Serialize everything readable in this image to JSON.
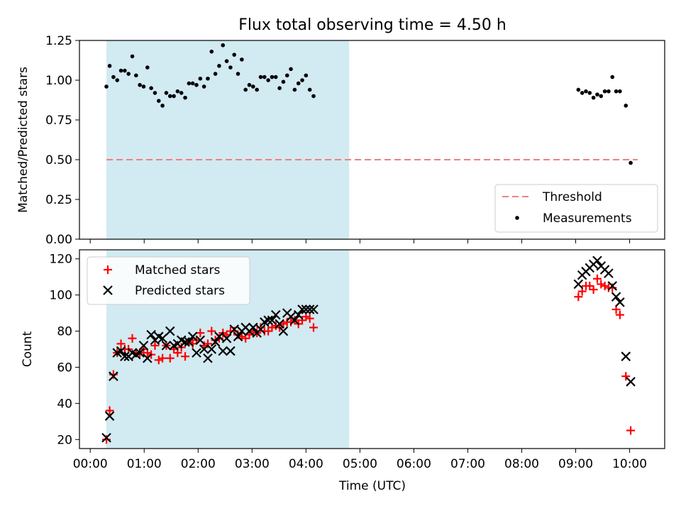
{
  "figure": {
    "title": "Flux total observing time = 4.50 h",
    "xlabel": "Time (UTC)"
  },
  "colors": {
    "shade": "#add8e6",
    "threshold": "#f08080",
    "measurement": "#000000",
    "matched": "#ff0000",
    "predicted": "#000000"
  },
  "chart_data": [
    {
      "type": "scatter",
      "ylabel": "Matched/Predicted stars",
      "ylim": [
        0.0,
        1.25
      ],
      "y_ticks": [
        0.0,
        0.25,
        0.5,
        0.75,
        1.0,
        1.25
      ],
      "y_tick_labels": [
        "0.00",
        "0.25",
        "0.50",
        "0.75",
        "1.00",
        "1.25"
      ],
      "x_unit": "hours (UTC)",
      "shaded_interval": [
        0.3,
        4.8
      ],
      "grid": false,
      "legend": {
        "position": "lower-right",
        "entries": [
          "Threshold",
          "Measurements"
        ]
      },
      "series": [
        {
          "name": "Threshold",
          "kind": "dashed-line",
          "x": [
            0.3,
            10.15
          ],
          "y": [
            0.5,
            0.5
          ]
        },
        {
          "name": "Measurements",
          "kind": "dots",
          "points": [
            [
              0.3,
              0.96
            ],
            [
              0.36,
              1.09
            ],
            [
              0.43,
              1.02
            ],
            [
              0.5,
              1.0
            ],
            [
              0.57,
              1.06
            ],
            [
              0.64,
              1.06
            ],
            [
              0.71,
              1.04
            ],
            [
              0.78,
              1.15
            ],
            [
              0.85,
              1.03
            ],
            [
              0.92,
              0.97
            ],
            [
              0.99,
              0.96
            ],
            [
              1.06,
              1.08
            ],
            [
              1.13,
              0.95
            ],
            [
              1.2,
              0.92
            ],
            [
              1.27,
              0.87
            ],
            [
              1.34,
              0.84
            ],
            [
              1.41,
              0.92
            ],
            [
              1.48,
              0.9
            ],
            [
              1.55,
              0.9
            ],
            [
              1.62,
              0.93
            ],
            [
              1.69,
              0.92
            ],
            [
              1.76,
              0.89
            ],
            [
              1.83,
              0.98
            ],
            [
              1.9,
              0.98
            ],
            [
              1.97,
              0.97
            ],
            [
              2.04,
              1.01
            ],
            [
              2.11,
              0.96
            ],
            [
              2.18,
              1.01
            ],
            [
              2.25,
              1.18
            ],
            [
              2.32,
              1.04
            ],
            [
              2.39,
              1.09
            ],
            [
              2.46,
              1.22
            ],
            [
              2.53,
              1.12
            ],
            [
              2.6,
              1.08
            ],
            [
              2.67,
              1.16
            ],
            [
              2.74,
              1.04
            ],
            [
              2.81,
              1.13
            ],
            [
              2.88,
              0.94
            ],
            [
              2.95,
              0.97
            ],
            [
              3.02,
              0.96
            ],
            [
              3.09,
              0.94
            ],
            [
              3.16,
              1.02
            ],
            [
              3.23,
              1.02
            ],
            [
              3.3,
              1.0
            ],
            [
              3.37,
              1.02
            ],
            [
              3.44,
              1.02
            ],
            [
              3.51,
              0.95
            ],
            [
              3.58,
              0.99
            ],
            [
              3.65,
              1.03
            ],
            [
              3.72,
              1.07
            ],
            [
              3.79,
              0.94
            ],
            [
              3.86,
              0.98
            ],
            [
              3.93,
              1.0
            ],
            [
              4.0,
              1.03
            ],
            [
              4.07,
              0.94
            ],
            [
              4.14,
              0.9
            ],
            [
              9.05,
              0.94
            ],
            [
              9.12,
              0.92
            ],
            [
              9.19,
              0.93
            ],
            [
              9.26,
              0.92
            ],
            [
              9.33,
              0.89
            ],
            [
              9.4,
              0.91
            ],
            [
              9.47,
              0.9
            ],
            [
              9.54,
              0.93
            ],
            [
              9.61,
              0.93
            ],
            [
              9.68,
              1.02
            ],
            [
              9.75,
              0.93
            ],
            [
              9.82,
              0.93
            ],
            [
              9.93,
              0.84
            ],
            [
              10.02,
              0.48
            ]
          ]
        }
      ]
    },
    {
      "type": "scatter",
      "ylabel": "Count",
      "ylim": [
        15,
        125
      ],
      "y_ticks": [
        20,
        40,
        60,
        80,
        100,
        120
      ],
      "y_tick_labels": [
        "20",
        "40",
        "60",
        "80",
        "100",
        "120"
      ],
      "xlim": [
        -0.2,
        10.65
      ],
      "x_unit": "hours (UTC)",
      "x_ticks": [
        0,
        1,
        2,
        3,
        4,
        5,
        6,
        7,
        8,
        9,
        10
      ],
      "x_tick_labels": [
        "00:00",
        "01:00",
        "02:00",
        "03:00",
        "04:00",
        "05:00",
        "06:00",
        "07:00",
        "08:00",
        "09:00",
        "10:00"
      ],
      "shaded_interval": [
        0.3,
        4.8
      ],
      "grid": false,
      "legend": {
        "position": "upper-left",
        "entries": [
          "Matched stars",
          "Predicted stars"
        ]
      },
      "series": [
        {
          "name": "Matched stars",
          "marker": "plus",
          "points": [
            [
              0.3,
              20
            ],
            [
              0.36,
              36
            ],
            [
              0.43,
              56
            ],
            [
              0.5,
              68
            ],
            [
              0.57,
              73
            ],
            [
              0.64,
              70
            ],
            [
              0.71,
              70
            ],
            [
              0.78,
              76
            ],
            [
              0.85,
              68
            ],
            [
              0.92,
              68
            ],
            [
              0.99,
              70
            ],
            [
              1.06,
              68
            ],
            [
              1.13,
              67
            ],
            [
              1.2,
              72
            ],
            [
              1.27,
              64
            ],
            [
              1.34,
              65
            ],
            [
              1.41,
              72
            ],
            [
              1.48,
              65
            ],
            [
              1.55,
              70
            ],
            [
              1.62,
              68
            ],
            [
              1.69,
              71
            ],
            [
              1.76,
              66
            ],
            [
              1.83,
              74
            ],
            [
              1.9,
              73
            ],
            [
              1.97,
              75
            ],
            [
              2.04,
              79
            ],
            [
              2.11,
              72
            ],
            [
              2.18,
              73
            ],
            [
              2.25,
              80
            ],
            [
              2.32,
              75
            ],
            [
              2.39,
              76
            ],
            [
              2.46,
              79
            ],
            [
              2.53,
              78
            ],
            [
              2.6,
              80
            ],
            [
              2.67,
              80
            ],
            [
              2.74,
              78
            ],
            [
              2.81,
              77
            ],
            [
              2.88,
              76
            ],
            [
              2.95,
              78
            ],
            [
              3.02,
              80
            ],
            [
              3.09,
              79
            ],
            [
              3.16,
              82
            ],
            [
              3.23,
              80
            ],
            [
              3.3,
              80
            ],
            [
              3.37,
              82
            ],
            [
              3.44,
              83
            ],
            [
              3.51,
              82
            ],
            [
              3.58,
              84
            ],
            [
              3.65,
              85
            ],
            [
              3.72,
              85
            ],
            [
              3.79,
              86
            ],
            [
              3.86,
              84
            ],
            [
              3.93,
              86
            ],
            [
              4.0,
              88
            ],
            [
              4.07,
              87
            ],
            [
              4.14,
              82
            ],
            [
              9.05,
              99
            ],
            [
              9.12,
              102
            ],
            [
              9.19,
              105
            ],
            [
              9.26,
              105
            ],
            [
              9.33,
              103
            ],
            [
              9.4,
              109
            ],
            [
              9.47,
              106
            ],
            [
              9.54,
              105
            ],
            [
              9.61,
              104
            ],
            [
              9.68,
              104
            ],
            [
              9.75,
              92
            ],
            [
              9.82,
              89
            ],
            [
              9.93,
              55
            ],
            [
              10.02,
              25
            ]
          ]
        },
        {
          "name": "Predicted stars",
          "marker": "x",
          "points": [
            [
              0.3,
              21
            ],
            [
              0.36,
              33
            ],
            [
              0.43,
              55
            ],
            [
              0.5,
              68
            ],
            [
              0.57,
              69
            ],
            [
              0.64,
              66
            ],
            [
              0.71,
              66
            ],
            [
              0.78,
              68
            ],
            [
              0.85,
              67
            ],
            [
              0.92,
              68
            ],
            [
              0.99,
              72
            ],
            [
              1.06,
              65
            ],
            [
              1.13,
              78
            ],
            [
              1.2,
              75
            ],
            [
              1.27,
              77
            ],
            [
              1.34,
              76
            ],
            [
              1.41,
              72
            ],
            [
              1.48,
              80
            ],
            [
              1.55,
              72
            ],
            [
              1.62,
              73
            ],
            [
              1.69,
              75
            ],
            [
              1.76,
              74
            ],
            [
              1.83,
              74
            ],
            [
              1.9,
              77
            ],
            [
              1.97,
              68
            ],
            [
              2.04,
              75
            ],
            [
              2.11,
              70
            ],
            [
              2.18,
              65
            ],
            [
              2.25,
              70
            ],
            [
              2.32,
              74
            ],
            [
              2.39,
              77
            ],
            [
              2.46,
              69
            ],
            [
              2.53,
              76
            ],
            [
              2.6,
              69
            ],
            [
              2.67,
              81
            ],
            [
              2.74,
              77
            ],
            [
              2.81,
              80
            ],
            [
              2.88,
              82
            ],
            [
              2.95,
              80
            ],
            [
              3.02,
              82
            ],
            [
              3.09,
              79
            ],
            [
              3.16,
              81
            ],
            [
              3.23,
              85
            ],
            [
              3.3,
              86
            ],
            [
              3.37,
              86
            ],
            [
              3.44,
              89
            ],
            [
              3.51,
              84
            ],
            [
              3.58,
              80
            ],
            [
              3.65,
              90
            ],
            [
              3.72,
              88
            ],
            [
              3.79,
              86
            ],
            [
              3.86,
              89
            ],
            [
              3.93,
              92
            ],
            [
              4.0,
              92
            ],
            [
              4.07,
              92
            ],
            [
              4.14,
              92
            ],
            [
              9.05,
              106
            ],
            [
              9.12,
              111
            ],
            [
              9.19,
              113
            ],
            [
              9.26,
              115
            ],
            [
              9.33,
              117
            ],
            [
              9.4,
              119
            ],
            [
              9.47,
              116
            ],
            [
              9.54,
              114
            ],
            [
              9.61,
              112
            ],
            [
              9.68,
              105
            ],
            [
              9.75,
              99
            ],
            [
              9.82,
              96
            ],
            [
              9.93,
              66
            ],
            [
              10.02,
              52
            ]
          ]
        }
      ]
    }
  ]
}
